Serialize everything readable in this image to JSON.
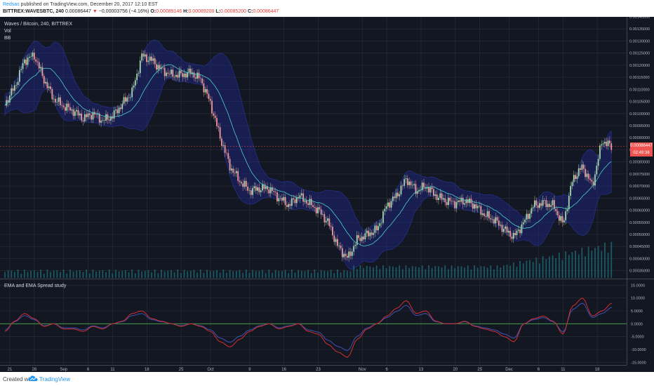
{
  "header": {
    "author": "Redsas",
    "publish_text": " published on TradingView.com, December 20, 2017 12:10 EST",
    "symbol": "BITTREX:WAVESBTC, 240",
    "last": "0.00086447",
    "change": "−0.00003756 (−4.16%)",
    "o_label": "O:",
    "o_val": "0.00089146",
    "h_label": "H:",
    "h_val": "0.00089200",
    "l_label": "L:",
    "l_val": "0.00085200",
    "c_label": "C:",
    "c_val": "0.00086447"
  },
  "legend": {
    "title": "Waves / Bitcoin, 240, BITTREX",
    "vol": "Vol",
    "bb": "BB",
    "oscillator": "EMA and EMA Spread study"
  },
  "price_tags": {
    "last": "0.00086447",
    "countdown": "02:49:36"
  },
  "footer": {
    "created_with": "Created with",
    "brand": "TradingView"
  },
  "colors": {
    "background": "#131722",
    "grid": "#2a2e39",
    "up_candle": "#a5d6a7",
    "down_candle": "#ef9a9a",
    "bb_band": "#1e2a8a",
    "basis": "#4dd0c8",
    "volume": "#1e6f7a",
    "osc_red": "#d32f2f",
    "osc_blue": "#3f51b5",
    "osc_zero": "#4caf50",
    "axis_text": "#b2b5be"
  },
  "chart_data": [
    {
      "type": "line",
      "title": "Waves / Bitcoin, 240, BITTREX",
      "ylim": [
        0.00032,
        0.0014
      ],
      "y_ticks": [
        "0.00140000",
        "0.00135000",
        "0.00130000",
        "0.00125000",
        "0.00120000",
        "0.00115000",
        "0.00110000",
        "0.00105000",
        "0.00100000",
        "0.00095000",
        "0.00090000",
        "0.00085000",
        "0.00080000",
        "0.00075000",
        "0.00070000",
        "0.00065000",
        "0.00060000",
        "0.00055000",
        "0.00050000",
        "0.00045000",
        "0.00040000",
        "0.00035000"
      ],
      "y_tick_values": [
        0.0014,
        0.00135,
        0.0013,
        0.00125,
        0.0012,
        0.00115,
        0.0011,
        0.00105,
        0.001,
        0.00095,
        0.0009,
        0.00085,
        0.0008,
        0.00075,
        0.0007,
        0.00065,
        0.0006,
        0.00055,
        0.0005,
        0.00045,
        0.0004,
        0.00035
      ],
      "x_ticks": [
        "21",
        "26",
        "Sep",
        "6",
        "11",
        "18",
        "25",
        "Oct",
        "9",
        "16",
        "23",
        "Nov",
        "6",
        "13",
        "20",
        "25",
        "Dec",
        "6",
        "11",
        "18"
      ],
      "x_tick_dayindex": [
        0,
        5,
        11,
        16,
        21,
        28,
        35,
        41,
        49,
        56,
        63,
        72,
        77,
        84,
        91,
        96,
        102,
        108,
        113,
        120
      ],
      "x_day_range": [
        -2,
        126
      ],
      "close_days": [
        -1,
        1,
        3,
        5,
        7,
        9,
        11,
        13,
        15,
        17,
        19,
        21,
        23,
        25,
        27,
        29,
        31,
        33,
        35,
        37,
        39,
        41,
        43,
        45,
        47,
        49,
        51,
        53,
        55,
        57,
        59,
        61,
        63,
        65,
        67,
        69,
        71,
        73,
        75,
        77,
        79,
        81,
        83,
        85,
        87,
        89,
        91,
        93,
        95,
        97,
        99,
        101,
        103,
        105,
        107,
        109,
        111,
        113,
        115,
        117,
        119,
        121,
        123
      ],
      "close_values": [
        0.00104,
        0.00111,
        0.00122,
        0.00124,
        0.00114,
        0.00106,
        0.00103,
        0.00101,
        0.00098,
        0.001,
        0.00097,
        0.00099,
        0.00104,
        0.00109,
        0.00124,
        0.00122,
        0.00118,
        0.00116,
        0.00116,
        0.00117,
        0.00114,
        0.00104,
        0.0009,
        0.00078,
        0.00072,
        0.00068,
        0.00069,
        0.00069,
        0.00065,
        0.00062,
        0.00066,
        0.00063,
        0.0006,
        0.00055,
        0.00045,
        0.0004,
        0.00048,
        0.0005,
        0.00052,
        0.00062,
        0.00066,
        0.00073,
        0.00068,
        0.0007,
        0.00066,
        0.00064,
        0.00063,
        0.00064,
        0.00062,
        0.00058,
        0.00056,
        0.00052,
        0.00049,
        0.00055,
        0.00062,
        0.00063,
        0.00062,
        0.00054,
        0.00073,
        0.00078,
        0.0007,
        0.00089,
        0.00086
      ],
      "volume_note": "relative volume bars along bottom of main pane"
    },
    {
      "type": "line",
      "title": "EMA and EMA Spread study",
      "ylim": [
        -16,
        17
      ],
      "y_ticks": [
        "15.0000",
        "10.0000",
        "5.0000",
        "0.0000",
        "-5.0000",
        "-10.0000",
        "-15.0000"
      ],
      "y_tick_values": [
        15,
        10,
        5,
        0,
        -5,
        -10,
        -15
      ],
      "x_days": [
        -1,
        1,
        3,
        5,
        7,
        9,
        11,
        13,
        15,
        17,
        19,
        21,
        23,
        25,
        27,
        29,
        31,
        33,
        35,
        37,
        39,
        41,
        43,
        45,
        47,
        49,
        51,
        53,
        55,
        57,
        59,
        61,
        63,
        65,
        67,
        69,
        71,
        73,
        75,
        77,
        79,
        81,
        83,
        85,
        87,
        89,
        91,
        93,
        95,
        97,
        99,
        101,
        103,
        105,
        107,
        109,
        111,
        113,
        115,
        117,
        119,
        121,
        123
      ],
      "values": [
        -3,
        1,
        4,
        2,
        -1,
        0,
        -2,
        -2,
        -3,
        -1,
        -2,
        0,
        1,
        4,
        5,
        2,
        1,
        0,
        -1,
        0,
        -1,
        -3,
        -7,
        -9,
        -6,
        -3,
        -1,
        0,
        -2,
        -1,
        0,
        -3,
        -4,
        -8,
        -11,
        -13,
        -6,
        -2,
        0,
        3,
        6,
        9,
        4,
        5,
        1,
        0,
        0,
        1,
        -1,
        -2,
        -3,
        -5,
        -7,
        0,
        2,
        3,
        1,
        -4,
        7,
        10,
        3,
        5,
        8
      ]
    }
  ]
}
